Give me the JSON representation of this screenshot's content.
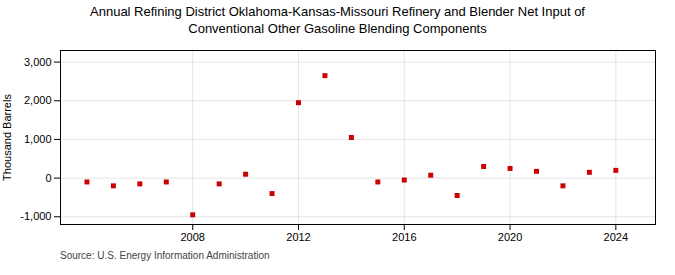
{
  "chart_data": {
    "type": "scatter",
    "title": "Annual Refining District Oklahoma-Kansas-Missouri Refinery and Blender Net Input of\nConventional Other Gasoline Blending Components",
    "ylabel": "Thousand Barrels",
    "source": "Source: U.S. Energy Information Administration",
    "x": [
      2004,
      2005,
      2006,
      2007,
      2008,
      2009,
      2010,
      2011,
      2012,
      2013,
      2014,
      2015,
      2016,
      2017,
      2018,
      2019,
      2020,
      2021,
      2022,
      2023,
      2024
    ],
    "values": [
      -100,
      -200,
      -150,
      -100,
      -950,
      -150,
      100,
      -400,
      1950,
      2650,
      1050,
      -100,
      -50,
      75,
      -450,
      300,
      250,
      175,
      -200,
      150,
      200
    ],
    "color": "#cc0000",
    "marker": "square",
    "xlim": [
      2003.0,
      2025.5
    ],
    "xticks": [
      2008,
      2012,
      2016,
      2020,
      2024
    ],
    "ylim": [
      -1200,
      3300
    ],
    "yticks": [
      {
        "value": -1000,
        "label": "-1,000"
      },
      0,
      {
        "value": 1000,
        "label": "1,000"
      },
      {
        "value": 2000,
        "label": "2,000"
      },
      {
        "value": 3000,
        "label": "3,000"
      }
    ],
    "grid": true
  }
}
